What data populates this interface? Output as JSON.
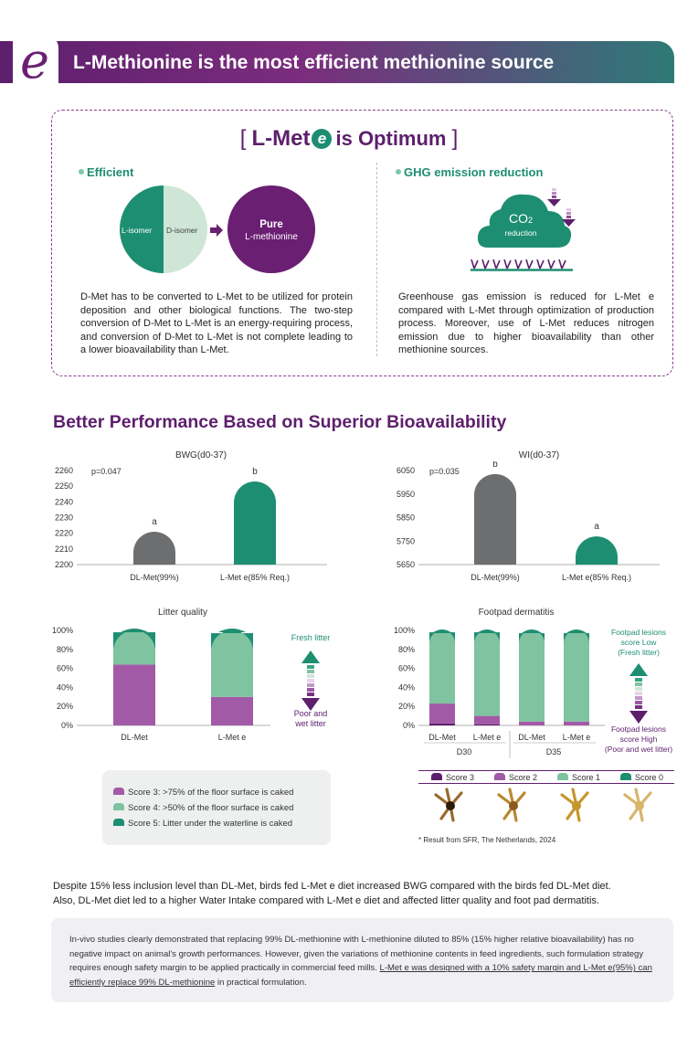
{
  "header": {
    "title": "L-Methionine is the most efficient methionine source"
  },
  "optimum": {
    "bracket_open": "[",
    "prefix": "L-Met",
    "e_letter": "e",
    "suffix": "is Optimum",
    "bracket_close": "]"
  },
  "efficient": {
    "heading": "Efficient",
    "l_isomer": "L-isomer",
    "d_isomer": "D-isomer",
    "pure_line1": "Pure",
    "pure_line2": "L-methionine",
    "text": "D-Met has to be converted to L-Met to be utilized for protein deposition and other biological functions. The two-step conversion of D-Met to L-Met is an energy-requiring process, and conversion of D-Met to L-Met is not complete leading to a lower bioavailability than L-Met."
  },
  "ghg": {
    "heading": "GHG emission reduction",
    "co2": "CO",
    "co2_sub": "2",
    "reduction": "reduction",
    "text": "Greenhouse gas emission is reduced for L-Met e compared with L-Met through optimization of production process. Moreover, use of L-Met reduces nitrogen emission due to higher bioavailability than other methionine sources."
  },
  "section_title": "Better Performance Based on Superior Bioavailability",
  "chart_data": [
    {
      "type": "bar",
      "title": "BWG(d0-37)",
      "p_value": "p=0.047",
      "categories": [
        "DL-Met(99%)",
        "L-Met e(85% Req.)"
      ],
      "values": [
        2221,
        2253
      ],
      "letters": [
        "a",
        "b"
      ],
      "ylim": [
        2200,
        2260
      ],
      "yticks": [
        "2260",
        "2250",
        "2240",
        "2230",
        "2220",
        "2210",
        "2200"
      ],
      "colors": [
        "#6d6e70",
        "#1e8e72"
      ]
    },
    {
      "type": "bar",
      "title": "WI(d0-37)",
      "p_value": "p=0.035",
      "categories": [
        "DL-Met(99%)",
        "L-Met e(85% Req.)"
      ],
      "values": [
        6035,
        5770
      ],
      "letters": [
        "b",
        "a"
      ],
      "ylim": [
        5650,
        6050
      ],
      "yticks": [
        "6050",
        "5950",
        "5850",
        "5750",
        "5650"
      ],
      "colors": [
        "#6d6e70",
        "#1e8e72"
      ]
    },
    {
      "type": "bar",
      "stacked": true,
      "title": "Litter quality",
      "categories": [
        "DL-Met",
        "L-Met e"
      ],
      "series": [
        {
          "name": "Score 3: >75% of the floor surface is caked",
          "values": [
            64,
            30
          ]
        },
        {
          "name": "Score 4: >50% of the floor surface is caked",
          "values": [
            34,
            67
          ]
        },
        {
          "name": "Score 5: Litter under the waterline is caked",
          "values": [
            2,
            3
          ]
        }
      ],
      "yticks": [
        "100%",
        "80%",
        "60%",
        "40%",
        "20%",
        "0%"
      ],
      "ylim": [
        0,
        100
      ],
      "annotation_top": "Fresh litter",
      "annotation_bottom_1": "Poor and",
      "annotation_bottom_2": "wet litter"
    },
    {
      "type": "bar",
      "stacked": true,
      "title": "Footpad dermatitis",
      "categories": [
        "DL-Met",
        "L-Met e",
        "DL-Met",
        "L-Met e"
      ],
      "groups": [
        "D30",
        "D35"
      ],
      "series": [
        {
          "name": "Score 3",
          "values": [
            2,
            1,
            0,
            0
          ]
        },
        {
          "name": "Score 2",
          "values": [
            21,
            9,
            4,
            4
          ]
        },
        {
          "name": "Score 1",
          "values": [
            75,
            88,
            93,
            93
          ]
        },
        {
          "name": "Score 0",
          "values": [
            2,
            2,
            3,
            3
          ]
        }
      ],
      "yticks": [
        "100%",
        "80%",
        "60%",
        "40%",
        "20%",
        "0%"
      ],
      "ylim": [
        0,
        100
      ],
      "annotation_top_1": "Footpad lesions",
      "annotation_top_2": "score Low",
      "annotation_top_3": "(Fresh litter)",
      "annotation_bottom_1": "Footpad lesions",
      "annotation_bottom_2": "score High",
      "annotation_bottom_3": "(Poor and wet litter)"
    }
  ],
  "colors": {
    "purple_dark": "#5d1f6c",
    "purple_mid": "#a25aa7",
    "green_dark": "#1e8e72",
    "green_light": "#7fc3a0",
    "grey": "#6d6e70"
  },
  "footpad_legend": [
    "Score 3",
    "Score 2",
    "Score 1",
    "Score 0"
  ],
  "note": "* Result from SFR, The Netherlands, 2024",
  "summary": {
    "line1": "Despite 15% less inclusion level than DL-Met, birds fed L-Met e diet increased BWG compared with the birds fed DL-Met diet.",
    "line2": "Also, DL-Met diet led to a higher Water Intake compared with L-Met e diet and affected litter quality and foot pad dermatitis."
  },
  "conclusion": {
    "text": "In-vivo studies clearly demonstrated that replacing 99% DL-methionine with L-methionine diluted to 85% (15% higher relative bioavailability) has no negative impact on animal's growth performances. However, given the variations of methionine contents in feed ingredients, such formulation strategy requires enough safety margin to be applied practically in commercial feed mills. ",
    "underlined": "L-Met e was designed with a 10% safety margin and L-Met e(95%) can efficiently replace 99% DL-methionine",
    "tail": " in practical formulation."
  }
}
